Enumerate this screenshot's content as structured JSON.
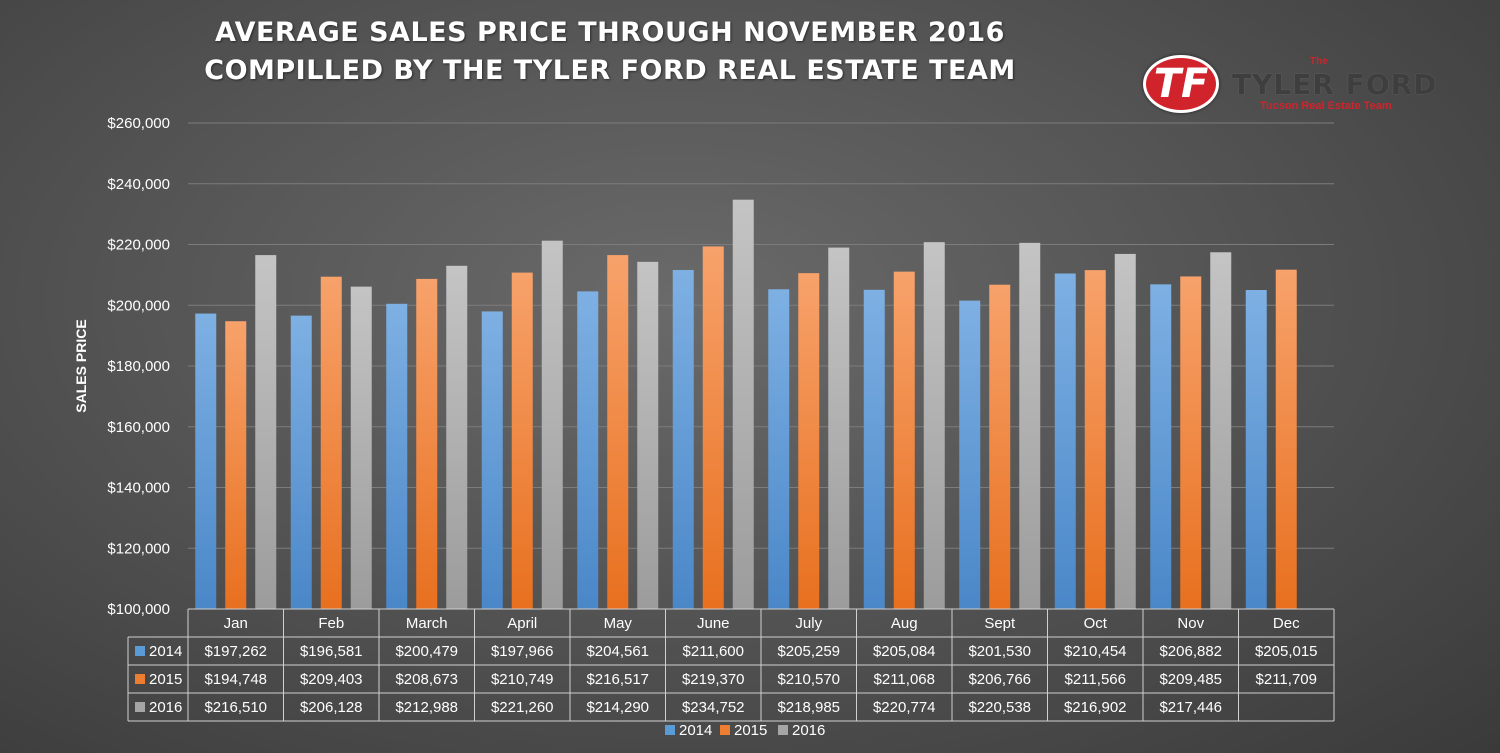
{
  "chart_data": {
    "type": "bar",
    "title": [
      "AVERAGE SALES PRICE THROUGH NOVEMBER 2016",
      "COMPILLED BY THE TYLER FORD REAL ESTATE TEAM"
    ],
    "ylabel": "SALES PRICE",
    "xlabel": "",
    "ylim": [
      100000,
      260000
    ],
    "yticks": [
      "$100,000",
      "$120,000",
      "$140,000",
      "$160,000",
      "$180,000",
      "$200,000",
      "$220,000",
      "$240,000",
      "$260,000"
    ],
    "ytick_values": [
      100000,
      120000,
      140000,
      160000,
      180000,
      200000,
      220000,
      240000,
      260000
    ],
    "grid": true,
    "legend_position": "bottom",
    "categories": [
      "Jan",
      "Feb",
      "March",
      "April",
      "May",
      "June",
      "July",
      "Aug",
      "Sept",
      "Oct",
      "Nov",
      "Dec"
    ],
    "series": [
      {
        "name": "2014",
        "color": "#5b9bd5",
        "values": [
          197262,
          196581,
          200479,
          197966,
          204561,
          211600,
          205259,
          205084,
          201530,
          210454,
          206882,
          205015
        ],
        "labels": [
          "$197,262",
          "$196,581",
          "$200,479",
          "$197,966",
          "$204,561",
          "$211,600",
          "$205,259",
          "$205,084",
          "$201,530",
          "$210,454",
          "$206,882",
          "$205,015"
        ]
      },
      {
        "name": "2015",
        "color": "#ed7d31",
        "values": [
          194748,
          209403,
          208673,
          210749,
          216517,
          219370,
          210570,
          211068,
          206766,
          211566,
          209485,
          211709
        ],
        "labels": [
          "$194,748",
          "$209,403",
          "$208,673",
          "$210,749",
          "$216,517",
          "$219,370",
          "$210,570",
          "$211,068",
          "$206,766",
          "$211,566",
          "$209,485",
          "$211,709"
        ]
      },
      {
        "name": "2016",
        "color": "#a5a5a5",
        "values": [
          216510,
          206128,
          212988,
          221260,
          214290,
          234752,
          218985,
          220774,
          220538,
          216902,
          217446,
          null
        ],
        "labels": [
          "$216,510",
          "$206,128",
          "$212,988",
          "$221,260",
          "$214,290",
          "$234,752",
          "$218,985",
          "$220,774",
          "$220,538",
          "$216,902",
          "$217,446",
          ""
        ]
      }
    ]
  },
  "logo": {
    "the": "The",
    "name": "TYLER FORD",
    "subtitle": "Tucson Real Estate Team",
    "monogram": "TF"
  }
}
